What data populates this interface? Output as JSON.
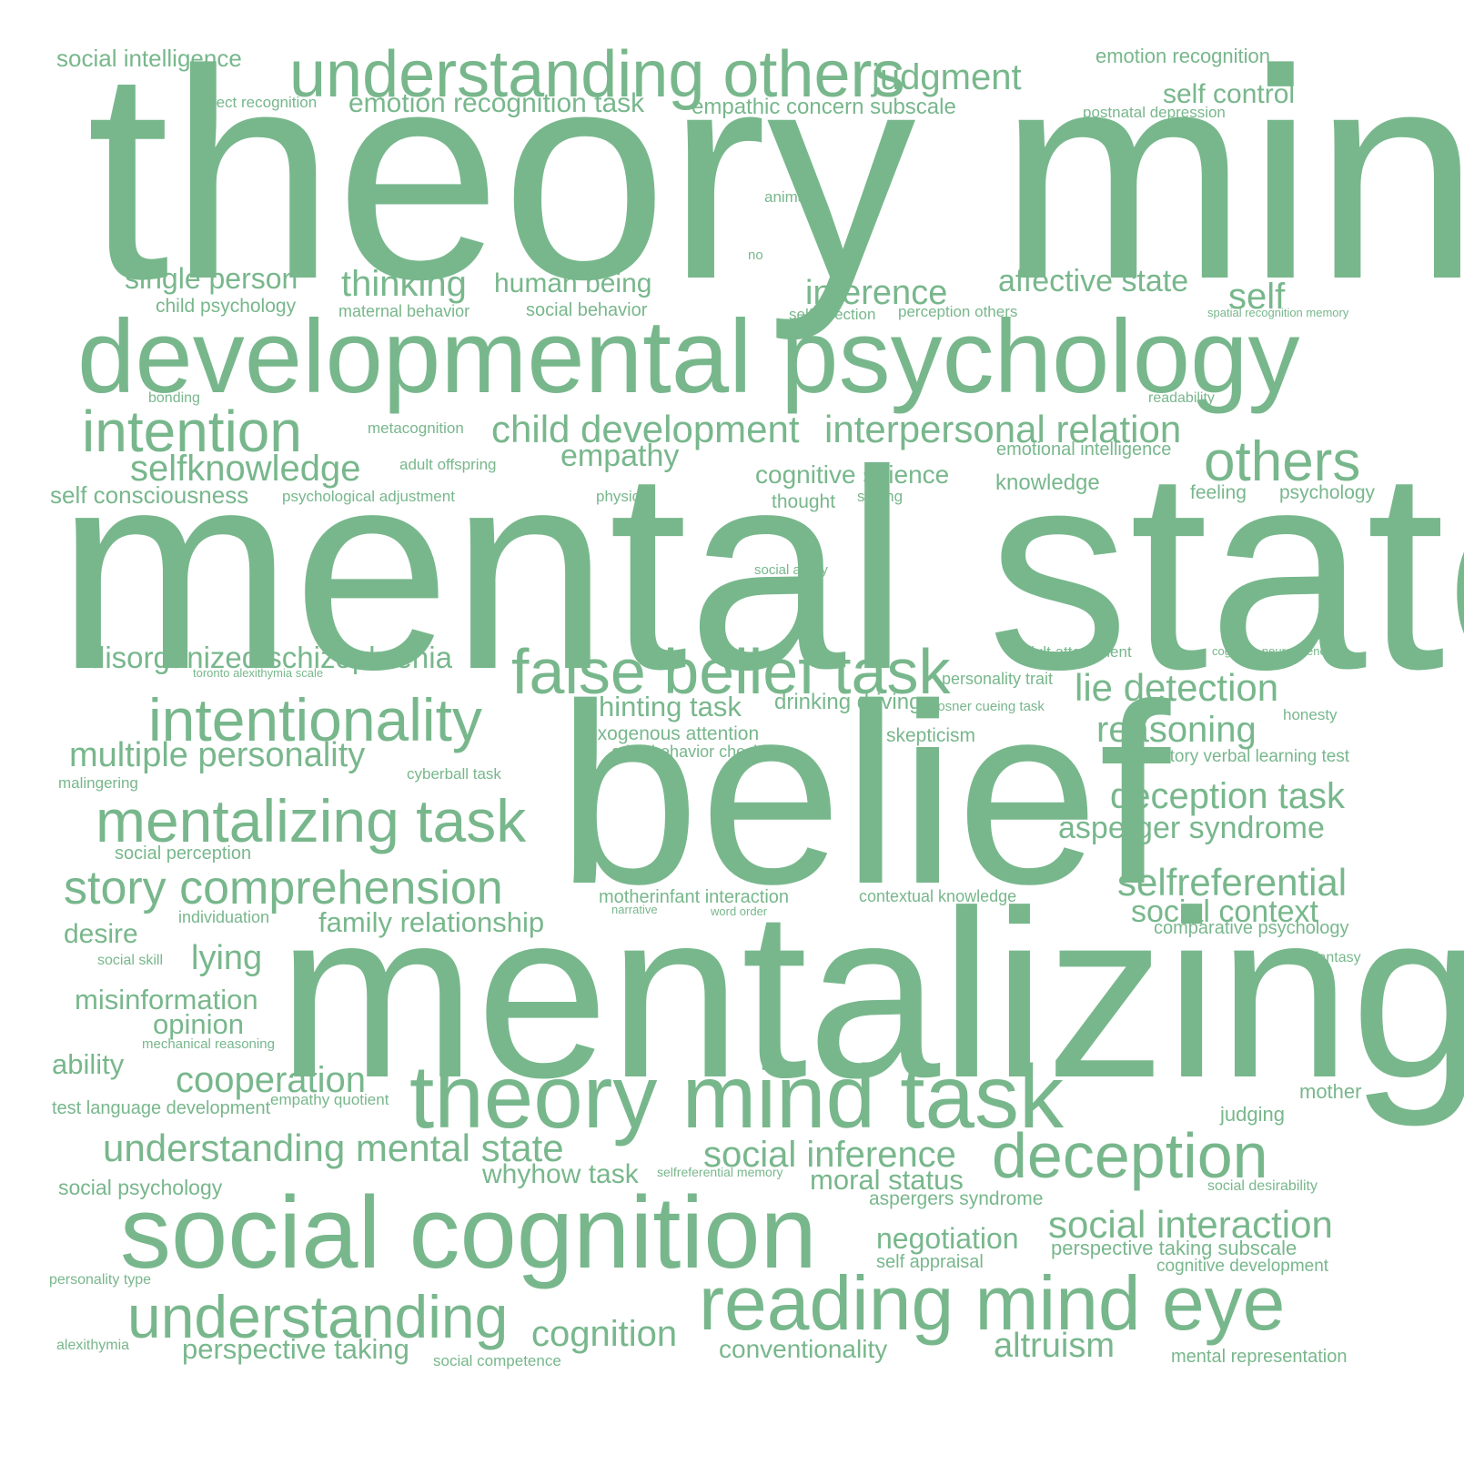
{
  "color": "#78b78c",
  "words": [
    "theory mind",
    "mental state",
    "belief",
    "mentalizing",
    "developmental psychology",
    "social cognition",
    "theory mind task",
    "reading mind eye",
    "understanding others",
    "false belief task",
    "deception",
    "intentionality",
    "mentalizing task",
    "understanding",
    "intention",
    "story comprehension",
    "others",
    "understanding mental state",
    "child development",
    "interpersonal relation",
    "social interaction",
    "lie detection",
    "selfreferential",
    "deception task",
    "reasoning",
    "judgment",
    "selfknowledge",
    "multiple personality",
    "cognition",
    "altruism",
    "asperger syndrome",
    "disorganized schizophrenia",
    "social inference",
    "inference",
    "thinking",
    "cooperation",
    "affective state",
    "self",
    "social context",
    "negotiation",
    "empathy",
    "single person",
    "emotion recognition task",
    "self control",
    "hinting task",
    "human being",
    "family relationship",
    "moral status",
    "misinformation",
    "perspective taking",
    "lying",
    "cognitive science",
    "opinion",
    "desire",
    "whyhow task",
    "conventionality",
    "ability",
    "self consciousness",
    "drinking driving",
    "knowledge",
    "social intelligence",
    "emotion recognition",
    "empathic concern subscale",
    "social psychology",
    "mother",
    "judging",
    "perspective taking subscale",
    "exogenous attention",
    "motherinfant interaction",
    "child psychology",
    "skepticism",
    "aspergers syndrome",
    "feeling",
    "psychology",
    "thought",
    "cognitive development",
    "comparative psychology",
    "self appraisal",
    "rey auditory verbal learning test",
    "test language development",
    "emotional intelligence",
    "social perception",
    "adult behavior checklist",
    "mental representation",
    "maternal behavior",
    "social behavior",
    "personality trait",
    "contextual knowledge",
    "individuation",
    "perception others",
    "honesty",
    "adult attachment",
    "physical",
    "seeing",
    "postnatal depression",
    "cyberball task",
    "malingering",
    "empathy quotient",
    "social competence",
    "animacy",
    "metacognition",
    "affect recognition",
    "adult offspring",
    "psychological adjustment",
    "selfreflection",
    "bonding",
    "readability",
    "social skill",
    "social ability",
    "social desirability",
    "fantasy",
    "posner cueing task",
    "mechanical reasoning",
    "selfreferential memory",
    "alexithymia",
    "personality type",
    "narrative",
    "word order",
    "spatial recognition memory",
    "cognitive neuroscience",
    "toronto alexithymia scale",
    "no"
  ]
}
